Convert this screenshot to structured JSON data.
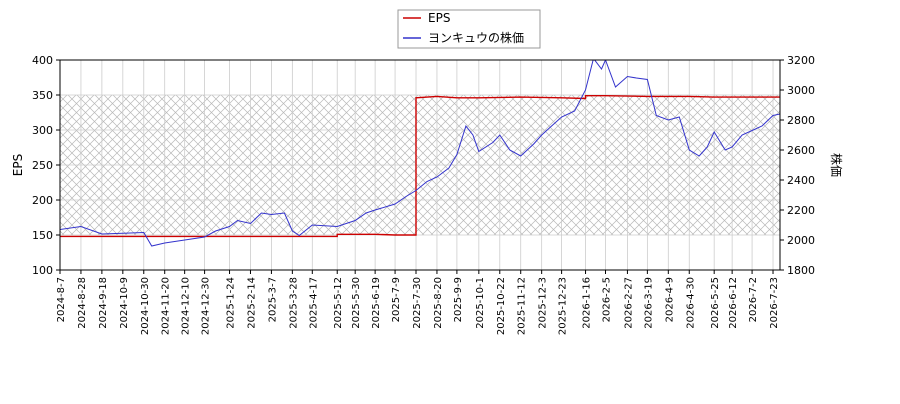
{
  "chart_data": {
    "type": "line",
    "legend": {
      "placement": "top-center",
      "items": [
        {
          "label": "EPS",
          "color": "#cc0000"
        },
        {
          "label": "ヨンキュウの株価",
          "color": "#3333cc"
        }
      ]
    },
    "y_left": {
      "label": "EPS",
      "range": [
        100,
        400
      ],
      "ticks": [
        "100",
        "150",
        "200",
        "250",
        "300",
        "350",
        "400"
      ]
    },
    "y_right": {
      "label": "株価",
      "range": [
        1800,
        3200
      ],
      "ticks": [
        "1800",
        "2000",
        "2200",
        "2400",
        "2600",
        "2800",
        "3000",
        "3200"
      ]
    },
    "x_ticks": [
      "2024-8-7",
      "2024-8-28",
      "2024-9-18",
      "2024-10-9",
      "2024-10-30",
      "2024-11-20",
      "2024-12-10",
      "2024-12-30",
      "2025-1-24",
      "2025-2-14",
      "2025-3-7",
      "2025-3-28",
      "2025-4-17",
      "2025-5-12",
      "2025-5-30",
      "2025-6-19",
      "2025-7-9",
      "2025-7-30",
      "2025-8-20",
      "2025-9-9",
      "2025-10-1",
      "2025-10-22",
      "2025-11-12",
      "2025-12-3",
      "2025-12-23",
      "2026-1-16",
      "2026-2-5",
      "2026-2-27",
      "2026-3-19",
      "2026-4-9",
      "2026-4-30",
      "2026-5-25",
      "2026-6-12",
      "2026-7-2",
      "2026-7-23"
    ],
    "grid": true,
    "hatched_band": {
      "eps_range": [
        150,
        350
      ]
    },
    "series": [
      {
        "name": "EPS",
        "axis": "left",
        "color": "#cc0000",
        "points": [
          [
            "2024-8-7",
            148
          ],
          [
            "2024-10-30",
            148
          ],
          [
            "2024-11-20",
            148
          ],
          [
            "2024-12-30",
            148
          ],
          [
            "2025-2-14",
            148
          ],
          [
            "2025-4-17",
            148
          ],
          [
            "2025-5-12",
            148
          ],
          [
            "2025-5-12",
            151
          ],
          [
            "2025-6-19",
            151
          ],
          [
            "2025-7-9",
            150
          ],
          [
            "2025-7-30",
            150
          ],
          [
            "2025-7-30",
            346
          ],
          [
            "2025-8-20",
            348
          ],
          [
            "2025-9-9",
            346
          ],
          [
            "2025-10-1",
            346
          ],
          [
            "2025-11-12",
            347
          ],
          [
            "2025-12-23",
            346
          ],
          [
            "2026-1-16",
            345
          ],
          [
            "2026-1-16",
            349
          ],
          [
            "2026-2-5",
            349
          ],
          [
            "2026-3-19",
            348
          ],
          [
            "2026-4-30",
            348
          ],
          [
            "2026-5-25",
            347
          ],
          [
            "2026-7-23",
            347
          ],
          [
            "2026-7-30",
            347
          ]
        ]
      },
      {
        "name": "ヨンキュウの株価",
        "axis": "right",
        "color": "#3333cc",
        "points": [
          [
            "2024-8-7",
            2070
          ],
          [
            "2024-8-28",
            2090
          ],
          [
            "2024-9-18",
            2040
          ],
          [
            "2024-10-9",
            2045
          ],
          [
            "2024-10-30",
            2050
          ],
          [
            "2024-11-7",
            1960
          ],
          [
            "2024-11-20",
            1980
          ],
          [
            "2024-12-10",
            2000
          ],
          [
            "2024-12-30",
            2020
          ],
          [
            "2025-1-10",
            2060
          ],
          [
            "2025-1-24",
            2090
          ],
          [
            "2025-2-1",
            2130
          ],
          [
            "2025-2-14",
            2110
          ],
          [
            "2025-2-25",
            2180
          ],
          [
            "2025-3-7",
            2170
          ],
          [
            "2025-3-20",
            2180
          ],
          [
            "2025-3-28",
            2060
          ],
          [
            "2025-4-4",
            2030
          ],
          [
            "2025-4-17",
            2100
          ],
          [
            "2025-5-12",
            2090
          ],
          [
            "2025-5-30",
            2130
          ],
          [
            "2025-6-10",
            2180
          ],
          [
            "2025-6-19",
            2200
          ],
          [
            "2025-7-9",
            2240
          ],
          [
            "2025-7-20",
            2290
          ],
          [
            "2025-7-30",
            2330
          ],
          [
            "2025-8-10",
            2390
          ],
          [
            "2025-8-20",
            2420
          ],
          [
            "2025-9-1",
            2480
          ],
          [
            "2025-9-9",
            2570
          ],
          [
            "2025-9-18",
            2760
          ],
          [
            "2025-9-25",
            2700
          ],
          [
            "2025-10-1",
            2590
          ],
          [
            "2025-10-15",
            2650
          ],
          [
            "2025-10-22",
            2700
          ],
          [
            "2025-11-1",
            2600
          ],
          [
            "2025-11-12",
            2560
          ],
          [
            "2025-11-25",
            2640
          ],
          [
            "2025-12-3",
            2700
          ],
          [
            "2025-12-13",
            2760
          ],
          [
            "2025-12-23",
            2820
          ],
          [
            "2026-1-5",
            2860
          ],
          [
            "2026-1-16",
            3000
          ],
          [
            "2026-1-24",
            3210
          ],
          [
            "2026-2-1",
            3140
          ],
          [
            "2026-2-5",
            3200
          ],
          [
            "2026-2-15",
            3020
          ],
          [
            "2026-2-27",
            3090
          ],
          [
            "2026-3-8",
            3080
          ],
          [
            "2026-3-19",
            3070
          ],
          [
            "2026-3-28",
            2830
          ],
          [
            "2026-4-9",
            2800
          ],
          [
            "2026-4-20",
            2820
          ],
          [
            "2026-4-30",
            2600
          ],
          [
            "2026-5-10",
            2560
          ],
          [
            "2026-5-18",
            2620
          ],
          [
            "2026-5-25",
            2720
          ],
          [
            "2026-6-5",
            2600
          ],
          [
            "2026-6-12",
            2620
          ],
          [
            "2026-6-22",
            2700
          ],
          [
            "2026-7-2",
            2730
          ],
          [
            "2026-7-12",
            2760
          ],
          [
            "2026-7-23",
            2830
          ],
          [
            "2026-7-30",
            2840
          ]
        ]
      }
    ]
  }
}
